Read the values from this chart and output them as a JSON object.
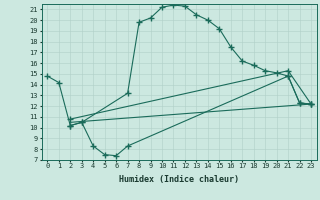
{
  "xlabel": "Humidex (Indice chaleur)",
  "bg_color": "#cce8e0",
  "line_color": "#1a6b5a",
  "grid_color": "#b0d0c8",
  "xlim": [
    -0.5,
    23.5
  ],
  "ylim": [
    7,
    21.5
  ],
  "xticks": [
    0,
    1,
    2,
    3,
    4,
    5,
    6,
    7,
    8,
    9,
    10,
    11,
    12,
    13,
    14,
    15,
    16,
    17,
    18,
    19,
    20,
    21,
    22,
    23
  ],
  "yticks": [
    7,
    8,
    9,
    10,
    11,
    12,
    13,
    14,
    15,
    16,
    17,
    18,
    19,
    20,
    21
  ],
  "line1_x": [
    0,
    1,
    2,
    3,
    7,
    8,
    9,
    10,
    11,
    12,
    13,
    14,
    15,
    16,
    17,
    18,
    19,
    20,
    21,
    22,
    23
  ],
  "line1_y": [
    14.8,
    14.2,
    10.2,
    10.5,
    13.2,
    19.8,
    20.2,
    21.2,
    21.4,
    21.3,
    20.5,
    20.0,
    19.2,
    17.5,
    16.2,
    15.8,
    15.3,
    15.1,
    14.8,
    12.3,
    12.2
  ],
  "line2_x": [
    2,
    3,
    4,
    5,
    6,
    7,
    21,
    22,
    23
  ],
  "line2_y": [
    10.2,
    10.5,
    8.3,
    7.5,
    7.4,
    8.3,
    14.8,
    12.3,
    12.2
  ],
  "line3_x": [
    2,
    23
  ],
  "line3_y": [
    10.5,
    12.2
  ],
  "line4_x": [
    2,
    21,
    23
  ],
  "line4_y": [
    10.8,
    15.3,
    12.2
  ]
}
